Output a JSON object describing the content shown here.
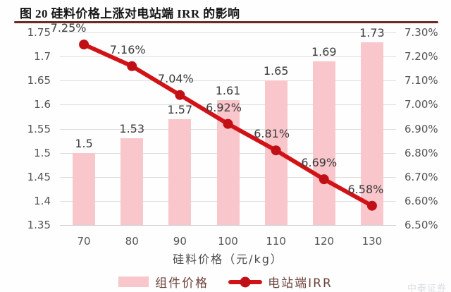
{
  "header": {
    "title": "图 20 硅料价格上涨对电站端 IRR 的影响"
  },
  "chart_data": {
    "type": "bar+line",
    "title": "图 20 硅料价格上涨对电站端 IRR 的影响",
    "categories": [
      "70",
      "80",
      "90",
      "100",
      "110",
      "120",
      "130"
    ],
    "xlabel": "硅料价格（元/kg）",
    "series": [
      {
        "name": "组件价格",
        "type": "bar",
        "axis": "left",
        "values": [
          1.5,
          1.53,
          1.57,
          1.61,
          1.65,
          1.69,
          1.73
        ],
        "labels": [
          "1.5",
          "1.53",
          "1.57",
          "1.61",
          "1.65",
          "1.69",
          "1.73"
        ]
      },
      {
        "name": "电站端IRR",
        "type": "line",
        "axis": "right",
        "values": [
          7.25,
          7.16,
          7.04,
          6.92,
          6.81,
          6.69,
          6.58
        ],
        "labels": [
          "7.25%",
          "7.16%",
          "7.04%",
          "6.92%",
          "6.81%",
          "6.69%",
          "6.58%"
        ]
      }
    ],
    "left_axis": {
      "min": 1.35,
      "max": 1.75,
      "step": 0.05,
      "ticks": [
        "1.75",
        "1.7",
        "1.65",
        "1.6",
        "1.55",
        "1.5",
        "1.45",
        "1.4",
        "1.35"
      ]
    },
    "right_axis": {
      "min": 6.5,
      "max": 7.3,
      "step": 0.1,
      "ticks": [
        "7.30%",
        "7.20%",
        "7.10%",
        "7.00%",
        "6.90%",
        "6.80%",
        "6.70%",
        "6.60%",
        "6.50%"
      ]
    },
    "grid": true,
    "legend_position": "bottom"
  },
  "footer": {
    "watermark": "中泰证券"
  },
  "colors": {
    "bar_pink": "#f8c6cb",
    "line_red": "#d11318",
    "marker_red": "#c11015",
    "divider_maroon": "#6e2922",
    "grid_gray": "#dedede",
    "axis_line_gray": "#cfcfcf",
    "tick_text": "#545454",
    "label_text": "#3b3b3b",
    "legend_text": "#6d423c"
  }
}
